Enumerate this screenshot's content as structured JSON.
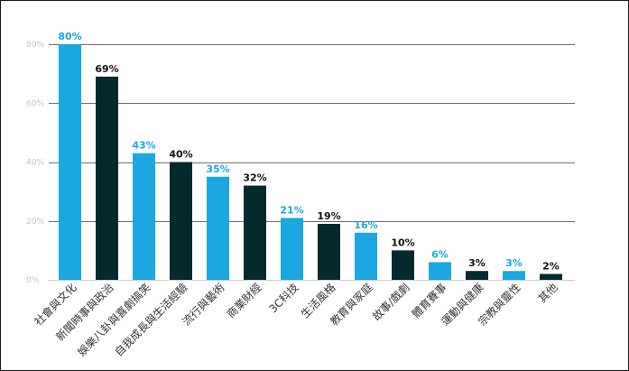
{
  "chart_data": {
    "type": "bar",
    "title": "",
    "xlabel": "",
    "ylabel": "",
    "ylim": [
      0,
      80
    ],
    "yticks": [
      0,
      20,
      40,
      60,
      80
    ],
    "ytick_labels": [
      "0%",
      "20%",
      "40%",
      "60%",
      "80%"
    ],
    "grid": true,
    "categories": [
      "社會與文化",
      "新聞時事與政治",
      "娛樂八卦與喜劇搞笑",
      "自我成長與生活經驗",
      "流行與藝術",
      "商業財經",
      "3C科技",
      "生活風格",
      "教育與家庭",
      "故事/戲劇",
      "體育賽事",
      "運動與健康",
      "宗教與靈性",
      "其他"
    ],
    "values": [
      80,
      69,
      43,
      40,
      35,
      32,
      21,
      19,
      16,
      10,
      6,
      3,
      3,
      2
    ],
    "value_labels": [
      "80%",
      "69%",
      "43%",
      "40%",
      "35%",
      "32%",
      "21%",
      "19%",
      "16%",
      "10%",
      "6%",
      "3%",
      "3%",
      "2%"
    ],
    "colors": {
      "light": "#1ba7e1",
      "dark": "#052a2e",
      "light_label": "#1ba7e1",
      "dark_label": "#111111"
    },
    "bar_color_pattern": [
      "light",
      "dark"
    ]
  }
}
